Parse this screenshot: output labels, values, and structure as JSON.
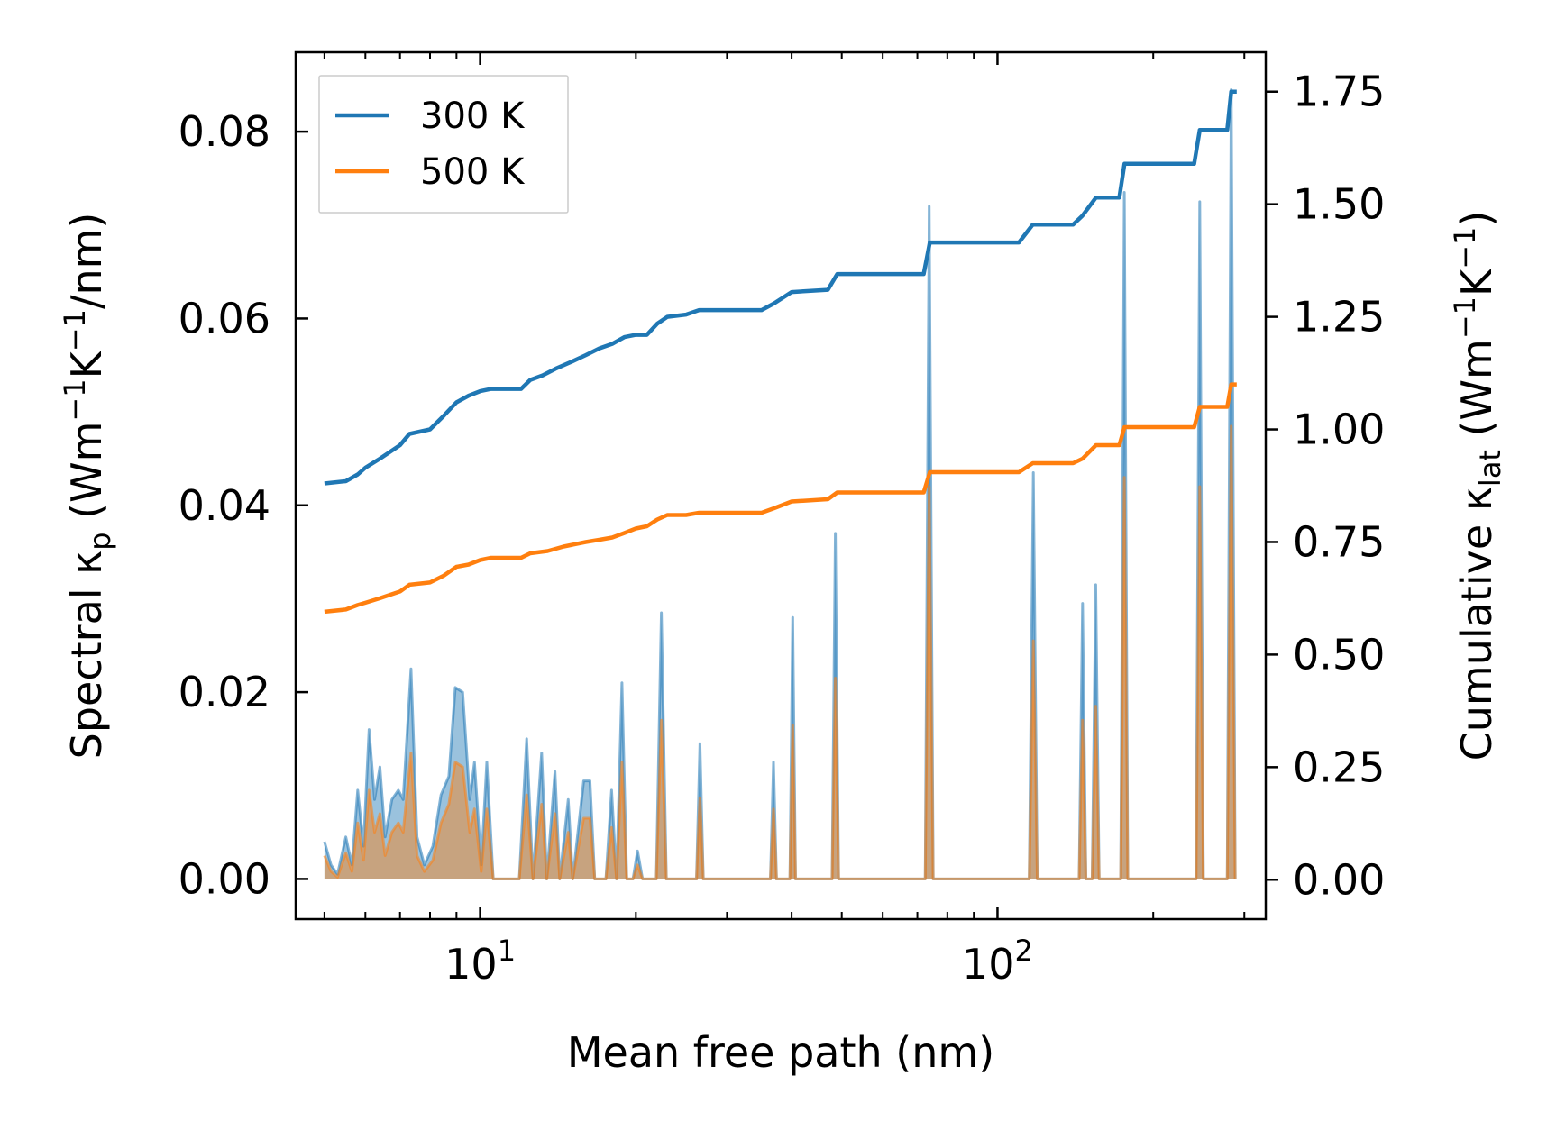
{
  "chart_data": {
    "type": "line",
    "x_scale": "log",
    "xlabel": "Mean free path (nm)",
    "ylabel_left": "Spectral κ<sub>p</sub> (Wm<sup>−1</sup>K<sup>−1</sup>/nm)",
    "ylabel_right": "Cumulative κ<sub>lat</sub> (Wm<sup>−1</sup>K<sup>−1</sup>)",
    "xlim": [
      4.4,
      330
    ],
    "ylim_left": [
      -0.0043,
      0.0885
    ],
    "ylim_right": [
      -0.0875,
      1.8375
    ],
    "left_ticks": [
      0.0,
      0.02,
      0.04,
      0.06,
      0.08
    ],
    "left_tick_labels": [
      "0.00",
      "0.02",
      "0.04",
      "0.06",
      "0.08"
    ],
    "right_ticks": [
      0.0,
      0.25,
      0.5,
      0.75,
      1.0,
      1.25,
      1.5,
      1.75
    ],
    "right_tick_labels": [
      "0.00",
      "0.25",
      "0.50",
      "0.75",
      "1.00",
      "1.25",
      "1.50",
      "1.75"
    ],
    "x_major_ticks": [
      10,
      100
    ],
    "x_major_tick_labels": [
      {
        "base": "10",
        "exp": "1"
      },
      {
        "base": "10",
        "exp": "2"
      }
    ],
    "colors": {
      "t300": "#1f77b4",
      "t500": "#ff7f0e",
      "fill300": "#1f77b4",
      "fill500": "#ff7f0e"
    },
    "legend": {
      "placement": "top-left",
      "entries": [
        {
          "label": "300 K",
          "series": "t300"
        },
        {
          "label": "500 K",
          "series": "t500"
        }
      ]
    },
    "spectral_300": [
      [
        5.0,
        0.004
      ],
      [
        5.15,
        0.0015
      ],
      [
        5.3,
        0.0005
      ],
      [
        5.5,
        0.0045
      ],
      [
        5.65,
        0.0015
      ],
      [
        5.8,
        0.0095
      ],
      [
        5.95,
        0.0035
      ],
      [
        6.1,
        0.016
      ],
      [
        6.25,
        0.0085
      ],
      [
        6.4,
        0.012
      ],
      [
        6.55,
        0.0045
      ],
      [
        6.75,
        0.0085
      ],
      [
        6.95,
        0.0095
      ],
      [
        7.1,
        0.0085
      ],
      [
        7.35,
        0.0225
      ],
      [
        7.55,
        0.0045
      ],
      [
        7.8,
        0.0015
      ],
      [
        8.1,
        0.0035
      ],
      [
        8.4,
        0.009
      ],
      [
        8.7,
        0.011
      ],
      [
        8.95,
        0.0205
      ],
      [
        9.25,
        0.02
      ],
      [
        9.55,
        0.0085
      ],
      [
        9.75,
        0.0125
      ],
      [
        10.05,
        0.0015
      ],
      [
        10.3,
        0.0125
      ],
      [
        10.6,
        0.0
      ],
      [
        11.9,
        0.0
      ],
      [
        12.3,
        0.015
      ],
      [
        12.65,
        0.0
      ],
      [
        13.15,
        0.0135
      ],
      [
        13.45,
        0.0
      ],
      [
        13.95,
        0.0115
      ],
      [
        14.25,
        0.0
      ],
      [
        14.8,
        0.0085
      ],
      [
        15.1,
        0.0
      ],
      [
        15.85,
        0.0105
      ],
      [
        16.3,
        0.0105
      ],
      [
        16.65,
        0.0
      ],
      [
        17.5,
        0.0
      ],
      [
        17.95,
        0.0095
      ],
      [
        18.35,
        0.0
      ],
      [
        18.8,
        0.021
      ],
      [
        19.2,
        0.0
      ],
      [
        19.75,
        0.0
      ],
      [
        20.15,
        0.003
      ],
      [
        20.6,
        0.0
      ],
      [
        21.9,
        0.0
      ],
      [
        22.4,
        0.0285
      ],
      [
        22.9,
        0.0
      ],
      [
        26.2,
        0.0
      ],
      [
        26.6,
        0.0145
      ],
      [
        27.0,
        0.0
      ],
      [
        36.4,
        0.0
      ],
      [
        36.9,
        0.0125
      ],
      [
        37.4,
        0.0
      ],
      [
        39.7,
        0.0
      ],
      [
        40.2,
        0.028
      ],
      [
        40.7,
        0.0
      ],
      [
        47.9,
        0.0
      ],
      [
        48.6,
        0.037
      ],
      [
        49.3,
        0.0
      ],
      [
        72.5,
        0.0
      ],
      [
        73.8,
        0.072
      ],
      [
        75.1,
        0.0
      ],
      [
        115.2,
        0.0
      ],
      [
        117.3,
        0.0435
      ],
      [
        119.4,
        0.0
      ],
      [
        143.8,
        0.0
      ],
      [
        146.0,
        0.0295
      ],
      [
        148.2,
        0.0
      ],
      [
        152.4,
        0.0
      ],
      [
        154.8,
        0.0315
      ],
      [
        157.2,
        0.0
      ],
      [
        173.0,
        0.0
      ],
      [
        175.8,
        0.0735
      ],
      [
        178.6,
        0.0
      ],
      [
        242.0,
        0.0
      ],
      [
        246.0,
        0.0725
      ],
      [
        250.0,
        0.0
      ],
      [
        278.0,
        0.0
      ],
      [
        283.0,
        0.0845
      ],
      [
        288.0,
        0.0
      ]
    ],
    "spectral_500": [
      [
        5.0,
        0.0025
      ],
      [
        5.15,
        0.0008
      ],
      [
        5.3,
        0.0002
      ],
      [
        5.5,
        0.0028
      ],
      [
        5.65,
        0.0008
      ],
      [
        5.8,
        0.006
      ],
      [
        5.95,
        0.002
      ],
      [
        6.1,
        0.0095
      ],
      [
        6.25,
        0.005
      ],
      [
        6.4,
        0.007
      ],
      [
        6.55,
        0.0025
      ],
      [
        6.75,
        0.005
      ],
      [
        6.95,
        0.006
      ],
      [
        7.1,
        0.005
      ],
      [
        7.35,
        0.0135
      ],
      [
        7.55,
        0.0025
      ],
      [
        7.8,
        0.0008
      ],
      [
        8.1,
        0.002
      ],
      [
        8.4,
        0.006
      ],
      [
        8.7,
        0.008
      ],
      [
        8.95,
        0.0125
      ],
      [
        9.25,
        0.012
      ],
      [
        9.55,
        0.005
      ],
      [
        9.75,
        0.0075
      ],
      [
        10.05,
        0.0008
      ],
      [
        10.3,
        0.0075
      ],
      [
        10.6,
        0.0
      ],
      [
        11.9,
        0.0
      ],
      [
        12.3,
        0.009
      ],
      [
        12.65,
        0.0
      ],
      [
        13.15,
        0.008
      ],
      [
        13.45,
        0.0
      ],
      [
        13.95,
        0.007
      ],
      [
        14.25,
        0.0
      ],
      [
        14.8,
        0.005
      ],
      [
        15.1,
        0.0
      ],
      [
        15.85,
        0.0065
      ],
      [
        16.3,
        0.0065
      ],
      [
        16.65,
        0.0
      ],
      [
        17.5,
        0.0
      ],
      [
        17.95,
        0.0055
      ],
      [
        18.35,
        0.0
      ],
      [
        18.8,
        0.0125
      ],
      [
        19.2,
        0.0
      ],
      [
        19.75,
        0.0
      ],
      [
        20.15,
        0.0015
      ],
      [
        20.6,
        0.0
      ],
      [
        21.9,
        0.0
      ],
      [
        22.4,
        0.017
      ],
      [
        22.9,
        0.0
      ],
      [
        26.2,
        0.0
      ],
      [
        26.6,
        0.0087
      ],
      [
        27.0,
        0.0
      ],
      [
        36.4,
        0.0
      ],
      [
        36.9,
        0.0075
      ],
      [
        37.4,
        0.0
      ],
      [
        39.7,
        0.0
      ],
      [
        40.2,
        0.0165
      ],
      [
        40.7,
        0.0
      ],
      [
        47.9,
        0.0
      ],
      [
        48.6,
        0.0215
      ],
      [
        49.3,
        0.0
      ],
      [
        72.5,
        0.0
      ],
      [
        73.8,
        0.042
      ],
      [
        75.1,
        0.0
      ],
      [
        115.2,
        0.0
      ],
      [
        117.3,
        0.0255
      ],
      [
        119.4,
        0.0
      ],
      [
        143.8,
        0.0
      ],
      [
        146.0,
        0.017
      ],
      [
        148.2,
        0.0
      ],
      [
        152.4,
        0.0
      ],
      [
        154.8,
        0.0185
      ],
      [
        157.2,
        0.0
      ],
      [
        173.0,
        0.0
      ],
      [
        175.8,
        0.043
      ],
      [
        178.6,
        0.0
      ],
      [
        242.0,
        0.0
      ],
      [
        246.0,
        0.042
      ],
      [
        250.0,
        0.0
      ],
      [
        278.0,
        0.0
      ],
      [
        283.0,
        0.0485
      ],
      [
        288.0,
        0.0
      ]
    ],
    "cumulative_300": [
      [
        5.0,
        0.88
      ],
      [
        5.5,
        0.885
      ],
      [
        5.8,
        0.9
      ],
      [
        6.0,
        0.915
      ],
      [
        6.4,
        0.935
      ],
      [
        7.0,
        0.965
      ],
      [
        7.3,
        0.99
      ],
      [
        8.0,
        1.0
      ],
      [
        8.5,
        1.03
      ],
      [
        9.0,
        1.06
      ],
      [
        9.5,
        1.075
      ],
      [
        10.0,
        1.085
      ],
      [
        10.5,
        1.09
      ],
      [
        12.0,
        1.09
      ],
      [
        12.5,
        1.11
      ],
      [
        13.2,
        1.12
      ],
      [
        14.0,
        1.135
      ],
      [
        15.0,
        1.15
      ],
      [
        16.0,
        1.165
      ],
      [
        17.0,
        1.18
      ],
      [
        18.0,
        1.19
      ],
      [
        19.0,
        1.205
      ],
      [
        20.0,
        1.21
      ],
      [
        21.0,
        1.21
      ],
      [
        22.0,
        1.235
      ],
      [
        23.0,
        1.25
      ],
      [
        25.0,
        1.255
      ],
      [
        26.5,
        1.265
      ],
      [
        35.0,
        1.265
      ],
      [
        37.0,
        1.28
      ],
      [
        40.0,
        1.305
      ],
      [
        47.0,
        1.31
      ],
      [
        49.0,
        1.345
      ],
      [
        72.0,
        1.345
      ],
      [
        74.0,
        1.415
      ],
      [
        110.0,
        1.415
      ],
      [
        117.0,
        1.455
      ],
      [
        140.0,
        1.455
      ],
      [
        146.0,
        1.475
      ],
      [
        155.0,
        1.515
      ],
      [
        172.0,
        1.515
      ],
      [
        176.0,
        1.59
      ],
      [
        240.0,
        1.59
      ],
      [
        246.0,
        1.665
      ],
      [
        278.0,
        1.665
      ],
      [
        283.0,
        1.75
      ],
      [
        290.0,
        1.75
      ]
    ],
    "cumulative_500": [
      [
        5.0,
        0.595
      ],
      [
        5.5,
        0.6
      ],
      [
        5.8,
        0.61
      ],
      [
        6.0,
        0.615
      ],
      [
        6.4,
        0.625
      ],
      [
        7.0,
        0.64
      ],
      [
        7.3,
        0.655
      ],
      [
        8.0,
        0.66
      ],
      [
        8.5,
        0.675
      ],
      [
        9.0,
        0.695
      ],
      [
        9.5,
        0.7
      ],
      [
        10.0,
        0.71
      ],
      [
        10.5,
        0.715
      ],
      [
        12.0,
        0.715
      ],
      [
        12.5,
        0.725
      ],
      [
        13.5,
        0.73
      ],
      [
        14.5,
        0.74
      ],
      [
        16.0,
        0.75
      ],
      [
        17.0,
        0.755
      ],
      [
        18.0,
        0.76
      ],
      [
        19.0,
        0.77
      ],
      [
        20.0,
        0.78
      ],
      [
        21.0,
        0.785
      ],
      [
        22.0,
        0.8
      ],
      [
        23.0,
        0.81
      ],
      [
        25.0,
        0.81
      ],
      [
        26.5,
        0.815
      ],
      [
        35.0,
        0.815
      ],
      [
        37.0,
        0.825
      ],
      [
        40.0,
        0.84
      ],
      [
        47.0,
        0.845
      ],
      [
        49.0,
        0.86
      ],
      [
        72.0,
        0.86
      ],
      [
        74.0,
        0.905
      ],
      [
        110.0,
        0.905
      ],
      [
        117.0,
        0.925
      ],
      [
        140.0,
        0.925
      ],
      [
        146.0,
        0.935
      ],
      [
        155.0,
        0.965
      ],
      [
        172.0,
        0.965
      ],
      [
        176.0,
        1.005
      ],
      [
        240.0,
        1.005
      ],
      [
        246.0,
        1.05
      ],
      [
        278.0,
        1.05
      ],
      [
        283.0,
        1.1
      ],
      [
        290.0,
        1.1
      ]
    ]
  }
}
